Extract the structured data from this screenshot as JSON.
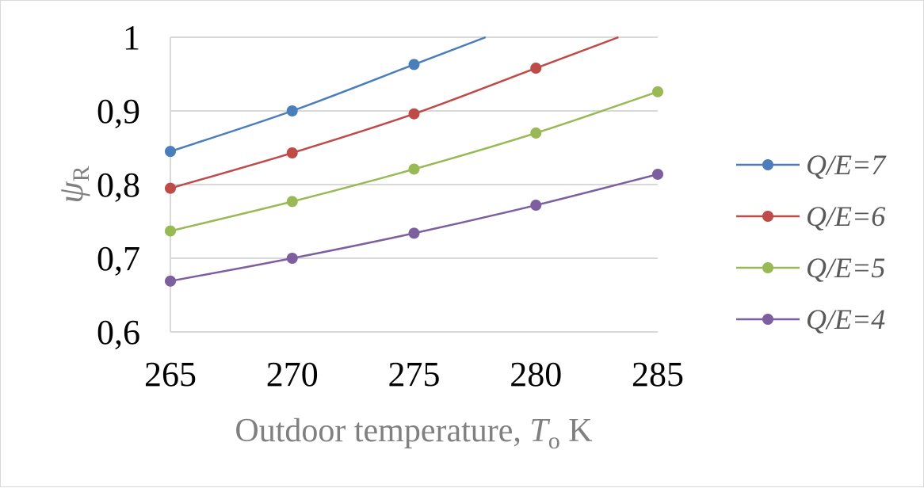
{
  "chart_data": {
    "type": "line",
    "title": "",
    "xlabel": {
      "main": "Outdoor temperature, ",
      "var": "T",
      "sub": "o",
      "unit": " K"
    },
    "ylabel": {
      "var": "ψ",
      "sub": "R"
    },
    "x": [
      265,
      270,
      275,
      280,
      285
    ],
    "xlim": [
      265,
      285
    ],
    "ylim": [
      0.6,
      1.0
    ],
    "xticks": [
      "265",
      "270",
      "275",
      "280",
      "285"
    ],
    "yticks": [
      "0,6",
      "0,7",
      "0,8",
      "0,9",
      "1"
    ],
    "grid": "horizontal",
    "legend_position": "right",
    "series": [
      {
        "name": "Q/E=7",
        "color": "#4a7ebb",
        "values": [
          0.845,
          0.9,
          0.963,
          null,
          null
        ],
        "extends_to_y_max": true
      },
      {
        "name": "Q/E=6",
        "color": "#be4b48",
        "values": [
          0.795,
          0.843,
          0.896,
          0.958,
          null
        ],
        "extends_to_y_max": true
      },
      {
        "name": "Q/E=5",
        "color": "#98b954",
        "values": [
          0.737,
          0.777,
          0.821,
          0.87,
          0.926
        ]
      },
      {
        "name": "Q/E=4",
        "color": "#7d5fa0",
        "values": [
          0.669,
          0.7,
          0.734,
          0.772,
          0.814
        ]
      }
    ]
  }
}
